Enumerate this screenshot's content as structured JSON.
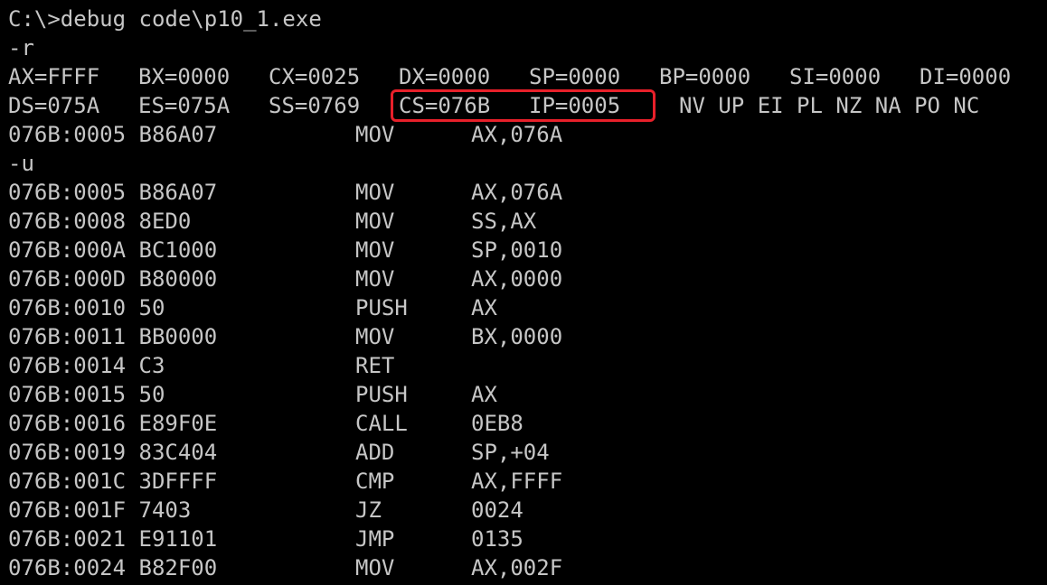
{
  "window": {
    "command_line": "C:\\>debug code\\p10_1.exe"
  },
  "registers_command": "-r",
  "registers": {
    "row1": [
      "AX=FFFF",
      "BX=0000",
      "CX=0025",
      "DX=0000",
      "SP=0000",
      "BP=0000",
      "SI=0000",
      "DI=0000"
    ],
    "row2": [
      "DS=075A",
      "ES=075A",
      "SS=0769"
    ],
    "highlighted": [
      "CS=076B",
      "IP=0005"
    ],
    "flags": "NV UP EI PL NZ NA PO NC",
    "highlight_color": "#e8202a"
  },
  "current_instruction": {
    "addr": "076B:0005 B86A07",
    "mnemonic": "MOV",
    "operands": "AX,076A"
  },
  "unassemble_command": "-u",
  "disassembly": [
    {
      "addr": "076B:0005 B86A07",
      "mnemonic": "MOV",
      "operands": "AX,076A"
    },
    {
      "addr": "076B:0008 8ED0",
      "mnemonic": "MOV",
      "operands": "SS,AX"
    },
    {
      "addr": "076B:000A BC1000",
      "mnemonic": "MOV",
      "operands": "SP,0010"
    },
    {
      "addr": "076B:000D B80000",
      "mnemonic": "MOV",
      "operands": "AX,0000"
    },
    {
      "addr": "076B:0010 50",
      "mnemonic": "PUSH",
      "operands": "AX"
    },
    {
      "addr": "076B:0011 BB0000",
      "mnemonic": "MOV",
      "operands": "BX,0000"
    },
    {
      "addr": "076B:0014 C3",
      "mnemonic": "RET",
      "operands": ""
    },
    {
      "addr": "076B:0015 50",
      "mnemonic": "PUSH",
      "operands": "AX"
    },
    {
      "addr": "076B:0016 E89F0E",
      "mnemonic": "CALL",
      "operands": "0EB8"
    },
    {
      "addr": "076B:0019 83C404",
      "mnemonic": "ADD",
      "operands": "SP,+04"
    },
    {
      "addr": "076B:001C 3DFFFF",
      "mnemonic": "CMP",
      "operands": "AX,FFFF"
    },
    {
      "addr": "076B:001F 7403",
      "mnemonic": "JZ",
      "operands": "0024"
    },
    {
      "addr": "076B:0021 E91101",
      "mnemonic": "JMP",
      "operands": "0135"
    },
    {
      "addr": "076B:0024 B82F00",
      "mnemonic": "MOV",
      "operands": "AX,002F"
    }
  ]
}
